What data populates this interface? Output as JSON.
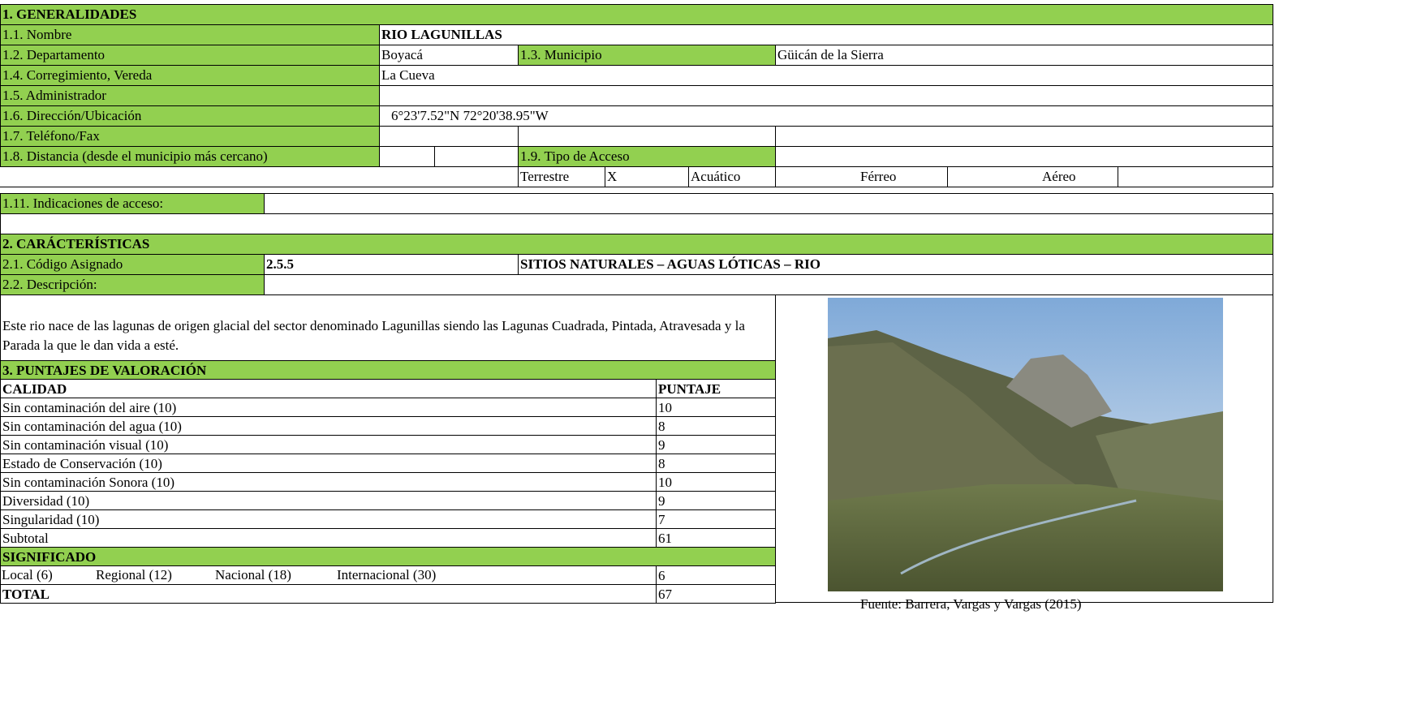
{
  "section1": {
    "title": "1. GENERALIDADES",
    "nombre": {
      "label": "1.1. Nombre",
      "value": "RIO LAGUNILLAS"
    },
    "departamento": {
      "label": "1.2. Departamento",
      "value": "Boyacá"
    },
    "municipio": {
      "label": "1.3. Municipio",
      "value": "Güicán de la Sierra"
    },
    "vereda": {
      "label": "1.4. Corregimiento, Vereda",
      "value": "La Cueva"
    },
    "administrador": {
      "label": "1.5. Administrador"
    },
    "ubicacion": {
      "label": "1.6. Dirección/Ubicación",
      "value": "6°23'7.52\"N  72°20'38.95\"W"
    },
    "telefono": {
      "label": "1.7. Teléfono/Fax"
    },
    "distancia": {
      "label": "1.8. Distancia (desde el municipio más cercano)"
    },
    "tipo_acceso": {
      "label": "1.9. Tipo de Acceso",
      "options": [
        {
          "label": "Terrestre",
          "mark": "X"
        },
        {
          "label": "Acuático"
        },
        {
          "label": "Férreo"
        },
        {
          "label": "Aéreo"
        }
      ]
    },
    "indicaciones": {
      "label": "1.11. Indicaciones de acceso:"
    }
  },
  "section2": {
    "title": "2. CARÁCTERÍSTICAS",
    "codigo": {
      "label": "2.1. Código Asignado",
      "value": "2.5.5",
      "category": "SITIOS NATURALES – AGUAS LÓTICAS – RIO"
    },
    "descripcion": {
      "label": "2.2. Descripción:",
      "text": "Este rio nace de las lagunas de origen glacial del sector denominado Lagunillas siendo  las Lagunas Cuadrada, Pintada, Atravesada y la Parada la que le dan vida a esté."
    }
  },
  "section3": {
    "title": "3. PUNTAJES DE VALORACIÓN",
    "calidad": {
      "header": "CALIDAD",
      "score_header": "PUNTAJE",
      "items": [
        {
          "label": "Sin contaminación del aire (10)",
          "score": 10
        },
        {
          "label": "Sin contaminación del agua (10)",
          "score": 8
        },
        {
          "label": "Sin contaminación visual (10)",
          "score": 9
        },
        {
          "label": "Estado de Conservación (10)",
          "score": 8
        },
        {
          "label": "Sin contaminación Sonora (10)",
          "score": 10
        },
        {
          "label": "Diversidad (10)",
          "score": 9
        },
        {
          "label": "Singularidad (10)",
          "score": 7
        }
      ],
      "subtotal": {
        "label": "Subtotal",
        "score": 61
      }
    },
    "significado": {
      "header": "SIGNIFICADO",
      "options": [
        "Local (6)",
        "Regional (12)",
        "Nacional (18)",
        "Internacional (30)"
      ],
      "score": 6
    },
    "total": {
      "label": "TOTAL",
      "score": 67
    }
  },
  "photo": {
    "caption": "Fuente: Barrera, Vargas y Vargas (2015)"
  }
}
